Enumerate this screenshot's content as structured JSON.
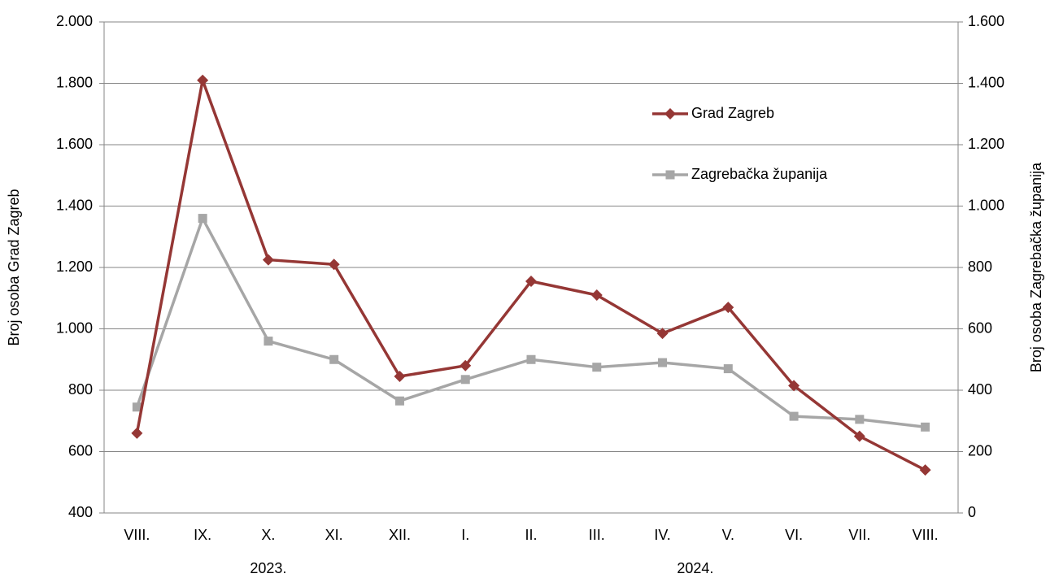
{
  "chart_data": {
    "type": "line",
    "categories": [
      "VIII.",
      "IX.",
      "X.",
      "XI.",
      "XII.",
      "I.",
      "II.",
      "III.",
      "IV.",
      "V.",
      "VI.",
      "VII.",
      "VIII."
    ],
    "year_labels": [
      "2023.",
      "2024."
    ],
    "y_label": "Broj osoba Grad Zagreb",
    "y2_label": "Broj osoba Zagrebačka županija",
    "ylim": [
      400,
      2000
    ],
    "yticks": [
      400,
      600,
      800,
      {
        "value": 1000,
        "label": "1.000"
      },
      {
        "value": 1200,
        "label": "1.200"
      },
      {
        "value": 1400,
        "label": "1.400"
      },
      {
        "value": 1600,
        "label": "1.600"
      },
      {
        "value": 1800,
        "label": "1.800"
      },
      {
        "value": 2000,
        "label": "2.000"
      }
    ],
    "y2lim": [
      0,
      1600
    ],
    "y2ticks": [
      0,
      200,
      400,
      600,
      800,
      {
        "value": 1000,
        "label": "1.000"
      },
      {
        "value": 1200,
        "label": "1.200"
      },
      {
        "value": 1400,
        "label": "1.400"
      },
      {
        "value": 1600,
        "label": "1.600"
      }
    ],
    "grid": true,
    "legend": "upper right",
    "series": [
      {
        "name": "Grad Zagreb",
        "color": "#953735",
        "marker": "diamond",
        "values": [
          660,
          1810,
          1225,
          1210,
          845,
          880,
          1155,
          1110,
          985,
          1070,
          815,
          650,
          540
        ]
      },
      {
        "name": "Zagrebačka županija",
        "color": "#a6a6a6",
        "marker": "square",
        "axis": "y2",
        "values": [
          345,
          960,
          560,
          500,
          365,
          435,
          500,
          475,
          490,
          470,
          315,
          305,
          280
        ]
      }
    ]
  }
}
